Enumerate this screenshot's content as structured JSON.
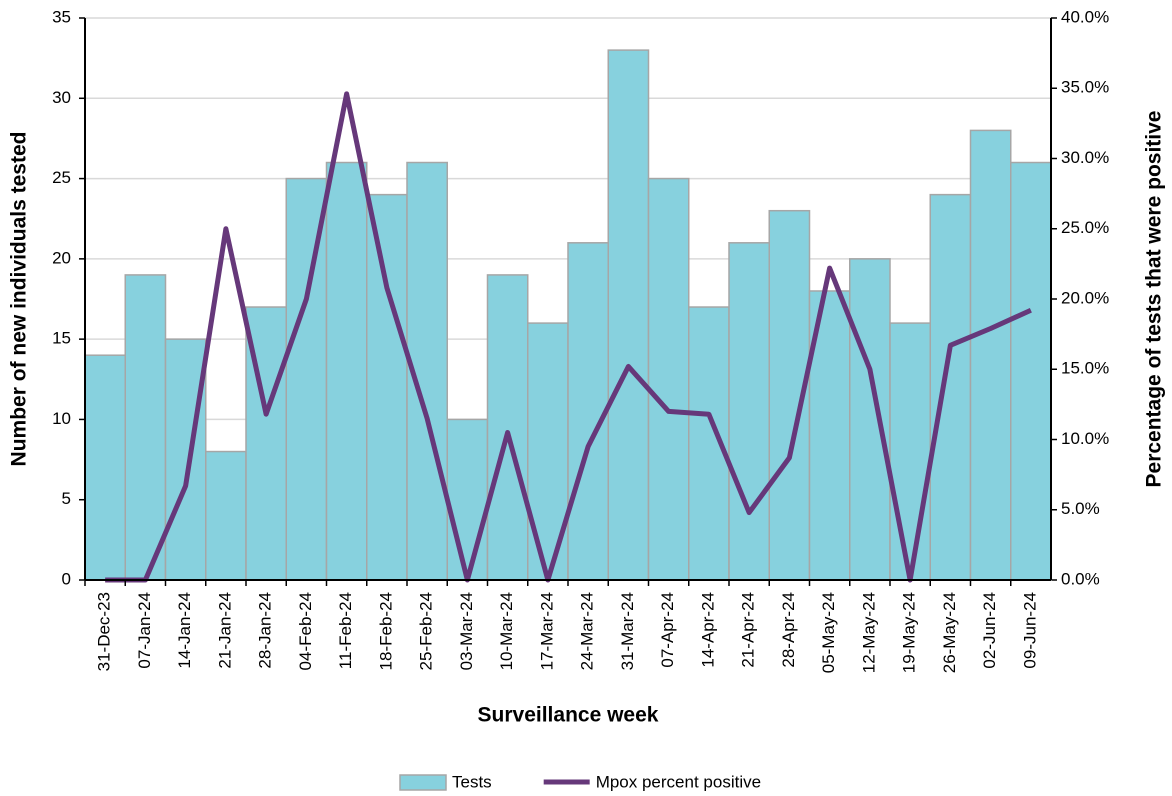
{
  "chart_data": {
    "type": "bar",
    "xlabel": "Surveillance week",
    "ylabel": "Number of new individuals tested",
    "y2label": "Percentage of tests that were positive",
    "categories": [
      "31-Dec-23",
      "07-Jan-24",
      "14-Jan-24",
      "21-Jan-24",
      "28-Jan-24",
      "04-Feb-24",
      "11-Feb-24",
      "18-Feb-24",
      "25-Feb-24",
      "03-Mar-24",
      "10-Mar-24",
      "17-Mar-24",
      "24-Mar-24",
      "31-Mar-24",
      "07-Apr-24",
      "14-Apr-24",
      "21-Apr-24",
      "28-Apr-24",
      "05-May-24",
      "12-May-24",
      "19-May-24",
      "26-May-24",
      "02-Jun-24",
      "09-Jun-24"
    ],
    "series": [
      {
        "name": "Tests",
        "type": "bar",
        "color": "#87d1de",
        "values": [
          14,
          19,
          15,
          8,
          17,
          25,
          26,
          24,
          26,
          10,
          19,
          16,
          21,
          33,
          25,
          17,
          21,
          23,
          18,
          20,
          16,
          24,
          28,
          26
        ]
      },
      {
        "name": "Mpox percent positive",
        "type": "line",
        "axis": "y2",
        "color": "#66387a",
        "values": [
          0,
          0,
          6.7,
          25.0,
          11.8,
          20.0,
          34.6,
          20.8,
          11.5,
          0,
          10.5,
          0,
          9.5,
          15.2,
          12.0,
          11.8,
          4.8,
          8.7,
          22.2,
          15.0,
          0,
          16.7,
          17.9,
          19.2
        ]
      }
    ],
    "ylim": [
      0,
      35
    ],
    "yticks": [
      0,
      5,
      10,
      15,
      20,
      25,
      30,
      35
    ],
    "y2lim": [
      0,
      40
    ],
    "y2ticks": [
      {
        "value": 0,
        "label": "0.0%"
      },
      {
        "value": 5,
        "label": "5.0%"
      },
      {
        "value": 10,
        "label": "10.0%"
      },
      {
        "value": 15,
        "label": "15.0%"
      },
      {
        "value": 20,
        "label": "20.0%"
      },
      {
        "value": 25,
        "label": "25.0%"
      },
      {
        "value": 30,
        "label": "30.0%"
      },
      {
        "value": 35,
        "label": "35.0%"
      },
      {
        "value": 40,
        "label": "40.0%"
      }
    ],
    "grid": true
  }
}
